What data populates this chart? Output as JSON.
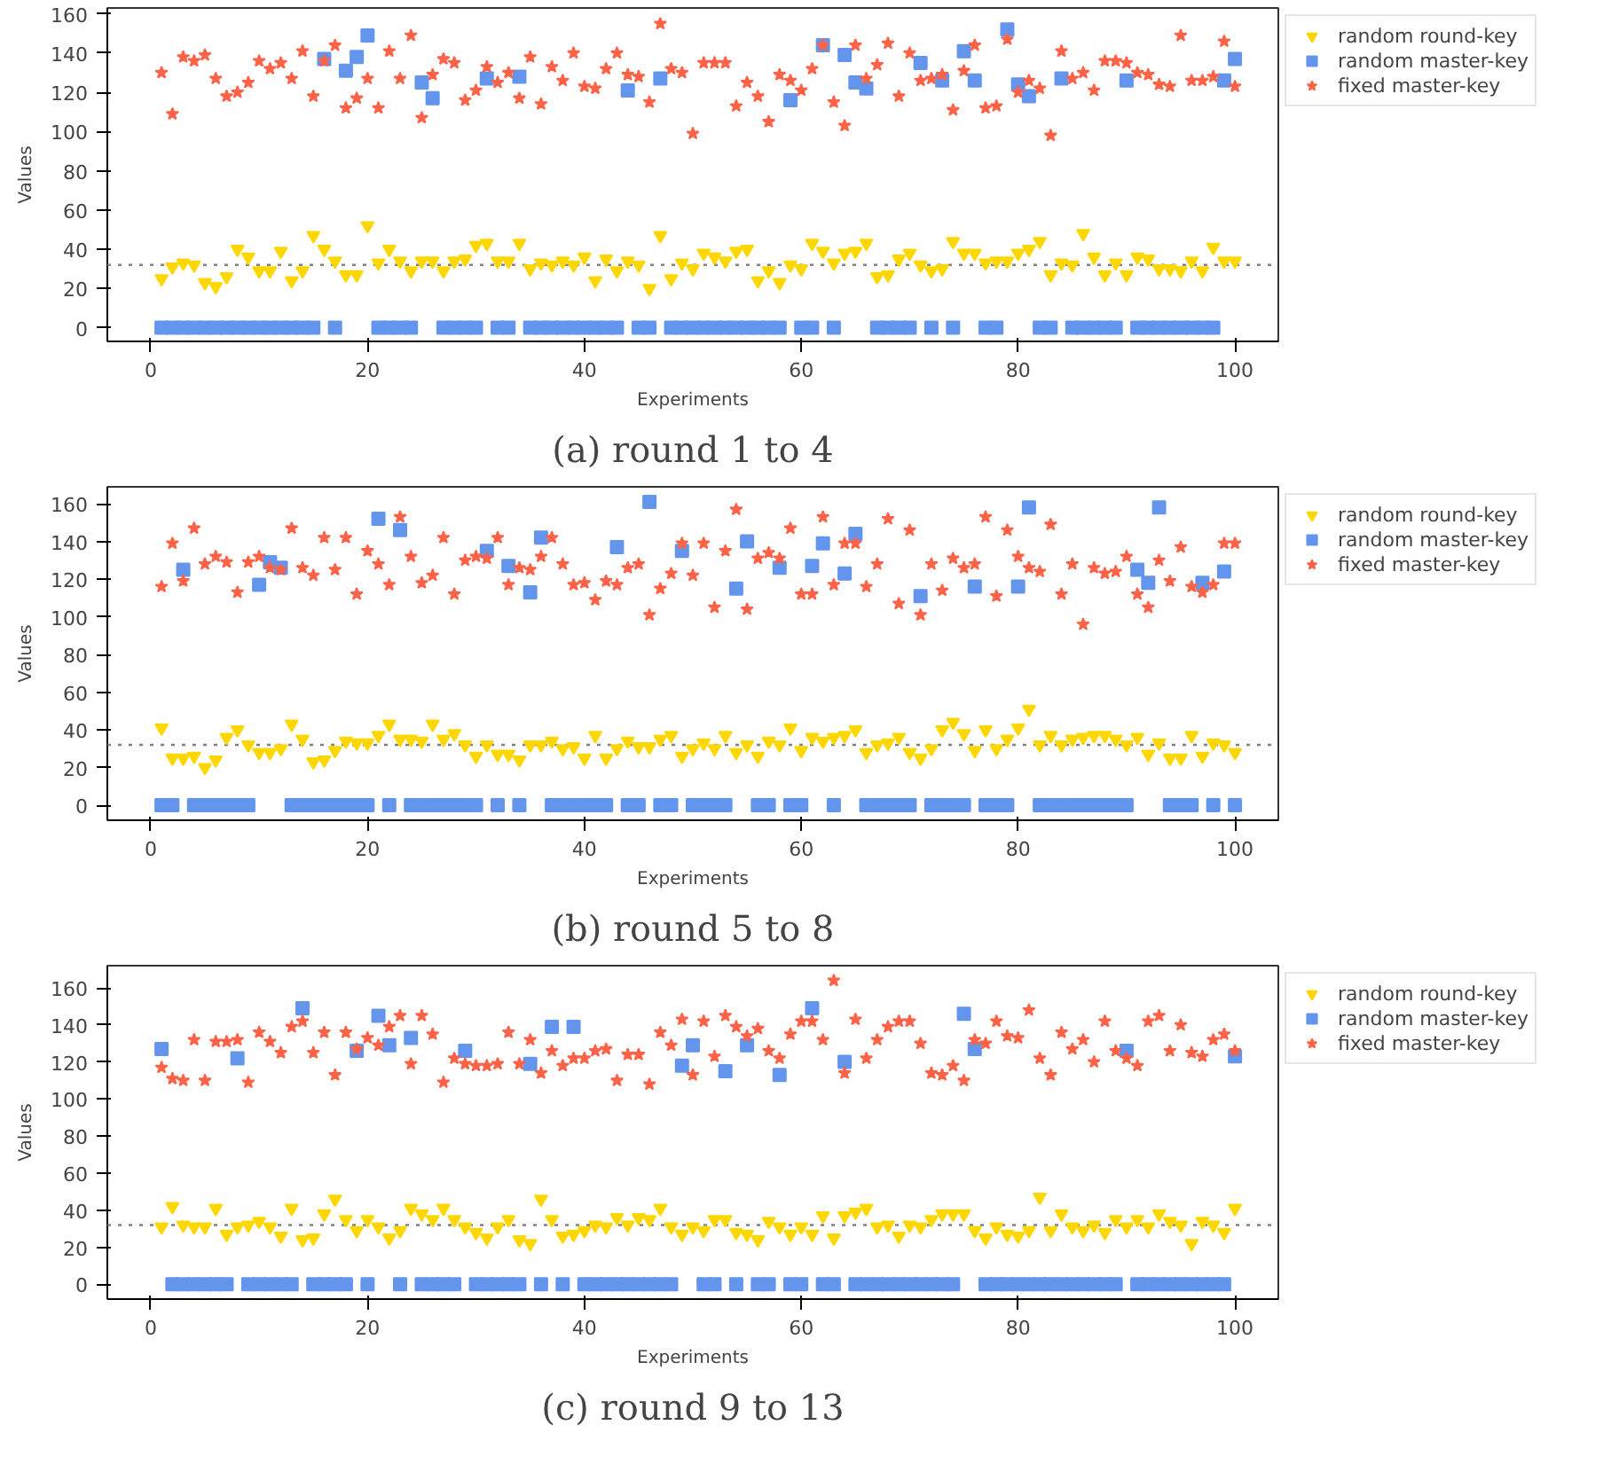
{
  "chart_data": [
    {
      "type": "scatter",
      "title": "(a) round 1 to 4",
      "xlabel": "Experiments",
      "ylabel": "Values",
      "xlim": [
        -4,
        104
      ],
      "xticks": [
        0,
        20,
        40,
        60,
        80,
        100
      ],
      "ylim": [
        -7,
        163
      ],
      "yticks": [
        0,
        20,
        40,
        60,
        80,
        100,
        120,
        140,
        160
      ],
      "legend": "top right",
      "grid": false,
      "ref_lines": [
        {
          "axis": "y",
          "value": 32,
          "color": "#808080",
          "line_style": "dotted"
        }
      ],
      "x": [
        1,
        2,
        3,
        4,
        5,
        6,
        7,
        8,
        9,
        10,
        11,
        12,
        13,
        14,
        15,
        16,
        17,
        18,
        19,
        20,
        21,
        22,
        23,
        24,
        25,
        26,
        27,
        28,
        29,
        30,
        31,
        32,
        33,
        34,
        35,
        36,
        37,
        38,
        39,
        40,
        41,
        42,
        43,
        44,
        45,
        46,
        47,
        48,
        49,
        50,
        51,
        52,
        53,
        54,
        55,
        56,
        57,
        58,
        59,
        60,
        61,
        62,
        63,
        64,
        65,
        66,
        67,
        68,
        69,
        70,
        71,
        72,
        73,
        74,
        75,
        76,
        77,
        78,
        79,
        80,
        81,
        82,
        83,
        84,
        85,
        86,
        87,
        88,
        89,
        90,
        91,
        92,
        93,
        94,
        95,
        96,
        97,
        98,
        99,
        100
      ],
      "series": [
        {
          "name": "random round-key",
          "color": "#ffd700",
          "marker": "triangle",
          "values": [
            25,
            31,
            33,
            32,
            23,
            21,
            26,
            40,
            36,
            29,
            29,
            39,
            24,
            29,
            47,
            40,
            34,
            27,
            27,
            52,
            33,
            40,
            34,
            29,
            34,
            34,
            29,
            34,
            35,
            42,
            43,
            34,
            34,
            43,
            30,
            33,
            32,
            34,
            32,
            36,
            24,
            35,
            29,
            34,
            32,
            20,
            47,
            25,
            33,
            30,
            38,
            36,
            34,
            39,
            40,
            24,
            29,
            23,
            32,
            30,
            43,
            39,
            33,
            38,
            39,
            43,
            26,
            27,
            35,
            38,
            32,
            29,
            30,
            44,
            38,
            38,
            33,
            34,
            34,
            38,
            40,
            44,
            27,
            33,
            32,
            48,
            36,
            27,
            33,
            27,
            36,
            35,
            30,
            30,
            29,
            34,
            29,
            41,
            34,
            34
          ]
        },
        {
          "name": "random master-key",
          "color": "#6495ed",
          "marker": "square",
          "values": [
            0,
            0,
            0,
            0,
            0,
            0,
            0,
            0,
            0,
            0,
            0,
            0,
            0,
            0,
            0,
            137,
            0,
            131,
            138,
            149,
            0,
            0,
            0,
            0,
            125,
            117,
            0,
            0,
            0,
            0,
            127,
            0,
            0,
            128,
            0,
            0,
            0,
            0,
            0,
            0,
            0,
            0,
            0,
            121,
            0,
            0,
            127,
            0,
            0,
            0,
            0,
            0,
            0,
            0,
            0,
            0,
            0,
            0,
            116,
            0,
            0,
            144,
            0,
            139,
            125,
            122,
            0,
            0,
            0,
            0,
            135,
            0,
            126,
            0,
            141,
            126,
            0,
            0,
            152,
            124,
            118,
            0,
            0,
            127,
            0,
            0,
            0,
            0,
            0,
            126,
            0,
            0,
            0,
            0,
            0,
            0,
            0,
            0,
            126,
            137
          ]
        },
        {
          "name": "fixed master-key",
          "color": "#ff6347",
          "marker": "star",
          "values": [
            130,
            109,
            138,
            136,
            139,
            127,
            118,
            120,
            125,
            136,
            132,
            135,
            127,
            141,
            118,
            136,
            144,
            112,
            117,
            127,
            112,
            141,
            127,
            149,
            107,
            129,
            137,
            135,
            116,
            121,
            133,
            125,
            130,
            117,
            138,
            114,
            133,
            126,
            140,
            123,
            122,
            132,
            140,
            129,
            128,
            115,
            155,
            132,
            130,
            99,
            135,
            135,
            135,
            113,
            125,
            118,
            105,
            129,
            126,
            121,
            132,
            144,
            115,
            103,
            144,
            127,
            134,
            145,
            118,
            140,
            126,
            127,
            129,
            111,
            131,
            144,
            112,
            113,
            147,
            120,
            126,
            122,
            98,
            141,
            127,
            130,
            121,
            136,
            136,
            135,
            130,
            129,
            124,
            123,
            149,
            126,
            126,
            128,
            146,
            123
          ]
        }
      ]
    },
    {
      "type": "scatter",
      "title": "(b) round 5 to 8",
      "xlabel": "Experiments",
      "ylabel": "Values",
      "xlim": [
        -4,
        104
      ],
      "xticks": [
        0,
        20,
        40,
        60,
        80,
        100
      ],
      "ylim": [
        -8,
        169
      ],
      "yticks": [
        0,
        20,
        40,
        60,
        80,
        100,
        120,
        140,
        160
      ],
      "legend": "top right",
      "grid": false,
      "ref_lines": [
        {
          "axis": "y",
          "value": 32,
          "color": "#808080",
          "line_style": "dotted"
        }
      ],
      "x": [
        1,
        2,
        3,
        4,
        5,
        6,
        7,
        8,
        9,
        10,
        11,
        12,
        13,
        14,
        15,
        16,
        17,
        18,
        19,
        20,
        21,
        22,
        23,
        24,
        25,
        26,
        27,
        28,
        29,
        30,
        31,
        32,
        33,
        34,
        35,
        36,
        37,
        38,
        39,
        40,
        41,
        42,
        43,
        44,
        45,
        46,
        47,
        48,
        49,
        50,
        51,
        52,
        53,
        54,
        55,
        56,
        57,
        58,
        59,
        60,
        61,
        62,
        63,
        64,
        65,
        66,
        67,
        68,
        69,
        70,
        71,
        72,
        73,
        74,
        75,
        76,
        77,
        78,
        79,
        80,
        81,
        82,
        83,
        84,
        85,
        86,
        87,
        88,
        89,
        90,
        91,
        92,
        93,
        94,
        95,
        96,
        97,
        98,
        99,
        100
      ],
      "series": [
        {
          "name": "random round-key",
          "color": "#ffd700",
          "marker": "triangle",
          "values": [
            41,
            25,
            25,
            26,
            20,
            24,
            36,
            40,
            32,
            28,
            28,
            30,
            43,
            35,
            23,
            24,
            29,
            34,
            33,
            33,
            37,
            43,
            35,
            35,
            34,
            43,
            35,
            38,
            32,
            26,
            32,
            27,
            27,
            24,
            32,
            32,
            34,
            30,
            31,
            25,
            37,
            25,
            30,
            34,
            31,
            31,
            35,
            37,
            26,
            30,
            33,
            30,
            37,
            28,
            32,
            26,
            34,
            32,
            41,
            29,
            36,
            34,
            36,
            37,
            40,
            28,
            32,
            33,
            36,
            28,
            25,
            30,
            40,
            44,
            38,
            29,
            40,
            30,
            35,
            41,
            51,
            32,
            37,
            32,
            35,
            36,
            37,
            37,
            35,
            32,
            36,
            27,
            33,
            25,
            25,
            37,
            26,
            33,
            32,
            28
          ]
        },
        {
          "name": "random master-key",
          "color": "#6495ed",
          "marker": "square",
          "values": [
            0,
            0,
            125,
            0,
            0,
            0,
            0,
            0,
            0,
            117,
            129,
            126,
            0,
            0,
            0,
            0,
            0,
            0,
            0,
            0,
            152,
            0,
            146,
            0,
            0,
            0,
            0,
            0,
            0,
            0,
            135,
            0,
            127,
            0,
            113,
            142,
            0,
            0,
            0,
            0,
            0,
            0,
            137,
            0,
            0,
            161,
            0,
            0,
            135,
            0,
            0,
            0,
            0,
            115,
            140,
            0,
            0,
            126,
            0,
            0,
            127,
            139,
            0,
            123,
            144,
            0,
            0,
            0,
            0,
            0,
            111,
            0,
            0,
            0,
            0,
            116,
            0,
            0,
            0,
            116,
            158,
            0,
            0,
            0,
            0,
            0,
            0,
            0,
            0,
            0,
            125,
            118,
            158,
            0,
            0,
            0,
            118,
            0,
            124,
            0
          ]
        },
        {
          "name": "fixed master-key",
          "color": "#ff6347",
          "marker": "star",
          "values": [
            116,
            139,
            119,
            147,
            128,
            132,
            129,
            113,
            129,
            132,
            126,
            125,
            147,
            126,
            122,
            142,
            125,
            142,
            112,
            135,
            128,
            117,
            153,
            132,
            118,
            122,
            142,
            112,
            130,
            132,
            131,
            142,
            117,
            126,
            125,
            132,
            142,
            128,
            117,
            118,
            109,
            119,
            117,
            126,
            128,
            101,
            115,
            123,
            139,
            122,
            139,
            105,
            135,
            157,
            104,
            131,
            134,
            131,
            147,
            112,
            112,
            153,
            117,
            139,
            139,
            116,
            128,
            152,
            107,
            146,
            101,
            128,
            114,
            131,
            126,
            128,
            153,
            111,
            146,
            132,
            126,
            124,
            149,
            112,
            128,
            96,
            126,
            123,
            124,
            132,
            112,
            105,
            130,
            119,
            137,
            116,
            113,
            117,
            139,
            139
          ]
        }
      ]
    },
    {
      "type": "scatter",
      "title": "(c) round 9 to 13",
      "xlabel": "Experiments",
      "ylabel": "Values",
      "xlim": [
        -4,
        104
      ],
      "xticks": [
        0,
        20,
        40,
        60,
        80,
        100
      ],
      "ylim": [
        -8,
        172
      ],
      "yticks": [
        0,
        20,
        40,
        60,
        80,
        100,
        120,
        140,
        160
      ],
      "legend": "top right",
      "grid": false,
      "ref_lines": [
        {
          "axis": "y",
          "value": 32,
          "color": "#808080",
          "line_style": "dotted"
        }
      ],
      "x": [
        1,
        2,
        3,
        4,
        5,
        6,
        7,
        8,
        9,
        10,
        11,
        12,
        13,
        14,
        15,
        16,
        17,
        18,
        19,
        20,
        21,
        22,
        23,
        24,
        25,
        26,
        27,
        28,
        29,
        30,
        31,
        32,
        33,
        34,
        35,
        36,
        37,
        38,
        39,
        40,
        41,
        42,
        43,
        44,
        45,
        46,
        47,
        48,
        49,
        50,
        51,
        52,
        53,
        54,
        55,
        56,
        57,
        58,
        59,
        60,
        61,
        62,
        63,
        64,
        65,
        66,
        67,
        68,
        69,
        70,
        71,
        72,
        73,
        74,
        75,
        76,
        77,
        78,
        79,
        80,
        81,
        82,
        83,
        84,
        85,
        86,
        87,
        88,
        89,
        90,
        91,
        92,
        93,
        94,
        95,
        96,
        97,
        98,
        99,
        100
      ],
      "series": [
        {
          "name": "random round-key",
          "color": "#ffd700",
          "marker": "triangle",
          "values": [
            31,
            42,
            32,
            31,
            31,
            41,
            27,
            31,
            32,
            34,
            31,
            26,
            41,
            24,
            25,
            38,
            46,
            35,
            29,
            35,
            31,
            25,
            29,
            41,
            38,
            35,
            41,
            35,
            31,
            28,
            25,
            31,
            35,
            24,
            22,
            46,
            35,
            26,
            27,
            29,
            32,
            31,
            36,
            32,
            36,
            35,
            41,
            31,
            27,
            31,
            29,
            35,
            35,
            28,
            27,
            24,
            34,
            31,
            27,
            31,
            27,
            37,
            25,
            37,
            39,
            41,
            31,
            32,
            26,
            32,
            31,
            35,
            38,
            38,
            38,
            29,
            25,
            31,
            27,
            26,
            29,
            47,
            29,
            38,
            31,
            29,
            32,
            28,
            35,
            31,
            35,
            31,
            38,
            34,
            32,
            22,
            34,
            32,
            28,
            41
          ]
        },
        {
          "name": "random master-key",
          "color": "#6495ed",
          "marker": "square",
          "values": [
            127,
            0,
            0,
            0,
            0,
            0,
            0,
            122,
            0,
            0,
            0,
            0,
            0,
            149,
            0,
            0,
            0,
            0,
            126,
            0,
            145,
            129,
            0,
            133,
            0,
            0,
            0,
            0,
            126,
            0,
            0,
            0,
            0,
            0,
            119,
            0,
            139,
            0,
            139,
            0,
            0,
            0,
            0,
            0,
            0,
            0,
            0,
            0,
            118,
            129,
            0,
            0,
            115,
            0,
            129,
            0,
            0,
            113,
            0,
            0,
            149,
            0,
            0,
            120,
            0,
            0,
            0,
            0,
            0,
            0,
            0,
            0,
            0,
            0,
            146,
            127,
            0,
            0,
            0,
            0,
            0,
            0,
            0,
            0,
            0,
            0,
            0,
            0,
            0,
            126,
            0,
            0,
            0,
            0,
            0,
            0,
            0,
            0,
            0,
            123
          ]
        },
        {
          "name": "fixed master-key",
          "color": "#ff6347",
          "marker": "star",
          "values": [
            117,
            111,
            110,
            132,
            110,
            131,
            131,
            132,
            109,
            136,
            131,
            125,
            139,
            142,
            125,
            136,
            113,
            136,
            127,
            133,
            129,
            139,
            145,
            119,
            145,
            135,
            109,
            122,
            119,
            118,
            118,
            119,
            136,
            119,
            132,
            114,
            126,
            118,
            122,
            122,
            126,
            127,
            110,
            124,
            124,
            108,
            136,
            129,
            143,
            113,
            142,
            123,
            145,
            139,
            134,
            138,
            126,
            122,
            135,
            142,
            142,
            132,
            164,
            114,
            143,
            122,
            132,
            139,
            142,
            142,
            130,
            114,
            113,
            118,
            110,
            132,
            130,
            142,
            134,
            133,
            148,
            122,
            113,
            136,
            127,
            132,
            120,
            142,
            126,
            122,
            118,
            142,
            145,
            126,
            140,
            125,
            123,
            132,
            135,
            126
          ]
        }
      ]
    }
  ]
}
